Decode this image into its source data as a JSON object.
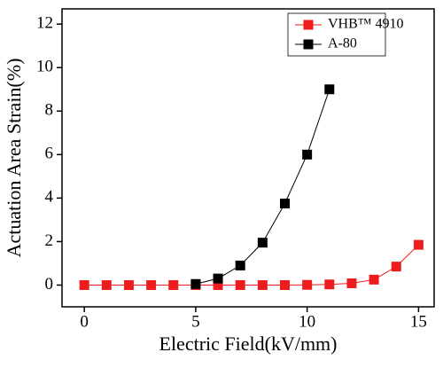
{
  "chart_data": {
    "type": "line",
    "xlabel": "Electric Field(kV/mm)",
    "ylabel": "Actuation Area Strain(%)",
    "series": [
      {
        "name": "VHB™ 4910",
        "color": "#ee1c1c",
        "x": [
          0,
          1,
          2,
          3,
          4,
          5,
          6,
          7,
          8,
          9,
          10,
          11,
          12,
          13,
          14,
          15
        ],
        "values": [
          0,
          0,
          0,
          0,
          0,
          0,
          0,
          0,
          0,
          0,
          0.01,
          0.03,
          0.08,
          0.25,
          0.85,
          1.85
        ]
      },
      {
        "name": "A-80",
        "color": "#000000",
        "x": [
          5,
          6,
          7,
          8,
          9,
          10,
          11
        ],
        "values": [
          0.05,
          0.3,
          0.9,
          1.95,
          3.75,
          6.0,
          9.0
        ]
      }
    ],
    "xlim": [
      -1,
      15.7
    ],
    "ylim": [
      -1,
      12.7
    ],
    "xticks": [
      0,
      5,
      10,
      15
    ],
    "yticks": [
      0,
      2,
      4,
      6,
      8,
      10,
      12
    ],
    "legend": "upper right"
  }
}
